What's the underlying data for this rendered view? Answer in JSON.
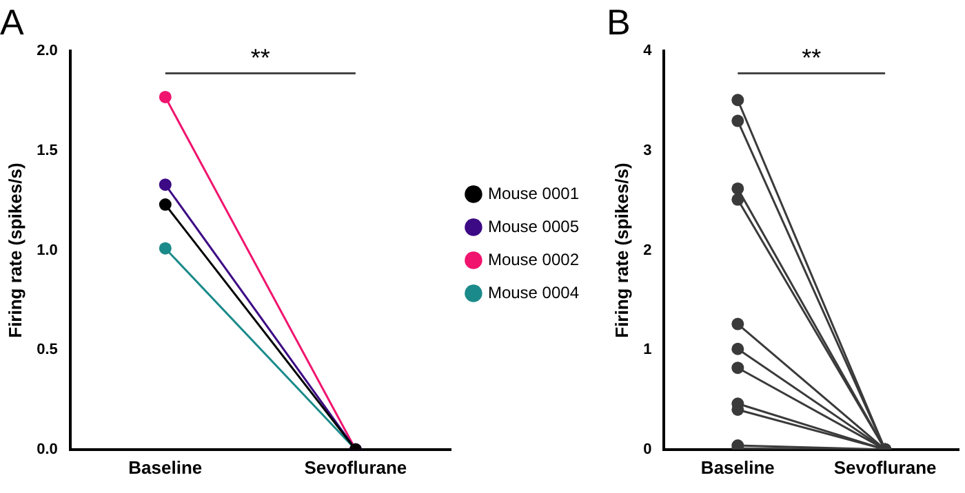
{
  "chart_data": [
    {
      "type": "line",
      "title": "A",
      "ylabel": "Firing rate (spikes/s)",
      "categories": [
        "Baseline",
        "Sevoflurane"
      ],
      "ylim": [
        0,
        2.0
      ],
      "yticks": [
        {
          "value": 0,
          "label": "0.0"
        },
        {
          "value": 0.5,
          "label": "0.5"
        },
        {
          "value": 1,
          "label": "1.0"
        },
        {
          "value": 1.5,
          "label": "1.5"
        },
        {
          "value": 2,
          "label": "2.0"
        }
      ],
      "grid": false,
      "legend": "right",
      "marker": "circle",
      "annotations": [
        "**"
      ],
      "series": [
        {
          "name": "Mouse 0001",
          "color": "#000000",
          "values": [
            1.23,
            0
          ]
        },
        {
          "name": "Mouse 0005",
          "color": "#3d0a85",
          "values": [
            1.33,
            0
          ]
        },
        {
          "name": "Mouse 0002",
          "color": "#f0146e",
          "values": [
            1.77,
            0
          ]
        },
        {
          "name": "Mouse 0004",
          "color": "#1b8a8a",
          "values": [
            1.01,
            0
          ]
        }
      ]
    },
    {
      "type": "line",
      "title": "B",
      "ylabel": "Firing rate (spikes/s)",
      "categories": [
        "Baseline",
        "Sevoflurane"
      ],
      "ylim": [
        0,
        4
      ],
      "yticks": [
        0,
        1,
        2,
        3,
        4
      ],
      "grid": false,
      "legend": false,
      "marker": "circle",
      "annotations": [
        "**"
      ],
      "series": [
        {
          "color": "#3a3a3a",
          "values": [
            3.51,
            0
          ]
        },
        {
          "color": "#3a3a3a",
          "values": [
            3.3,
            0
          ]
        },
        {
          "color": "#3a3a3a",
          "values": [
            2.62,
            0
          ]
        },
        {
          "color": "#3a3a3a",
          "values": [
            2.51,
            0
          ]
        },
        {
          "color": "#3a3a3a",
          "values": [
            1.26,
            0
          ]
        },
        {
          "color": "#3a3a3a",
          "values": [
            1.01,
            0
          ]
        },
        {
          "color": "#3a3a3a",
          "values": [
            0.82,
            0
          ]
        },
        {
          "color": "#3a3a3a",
          "values": [
            0.46,
            0
          ]
        },
        {
          "color": "#3a3a3a",
          "values": [
            0.4,
            0
          ]
        },
        {
          "color": "#3a3a3a",
          "values": [
            0.04,
            0
          ]
        },
        {
          "color": "#3a3a3a",
          "values": [
            0.01,
            0
          ]
        }
      ]
    }
  ]
}
